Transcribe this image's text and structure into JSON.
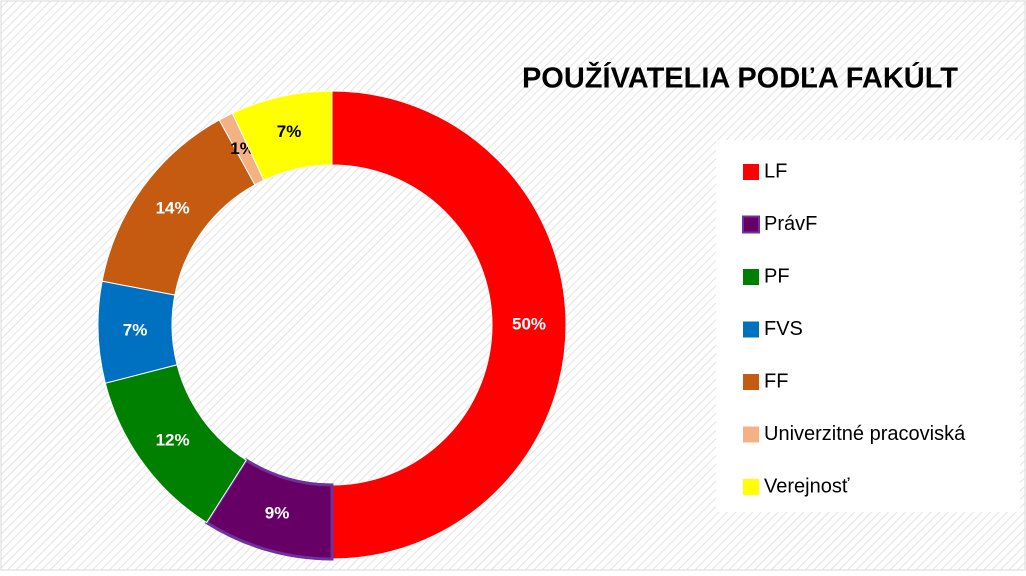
{
  "chart_data": {
    "type": "donut",
    "title": "POUŽÍVATELIA PODĽA FAKÚLT",
    "categories": [
      "LF",
      "PrávF",
      "PF",
      "FVS",
      "FF",
      "Univerzitné pracoviská",
      "Verejnosť"
    ],
    "values": [
      50,
      9,
      12,
      7,
      14,
      1,
      7
    ],
    "value_labels": [
      "50%",
      "9%",
      "12%",
      "7%",
      "14%",
      "1%",
      "7%"
    ],
    "colors": [
      "#ff0000",
      "#660066",
      "#008000",
      "#0070c0",
      "#c55a11",
      "#f4b183",
      "#ffff00"
    ],
    "legend": "right"
  }
}
